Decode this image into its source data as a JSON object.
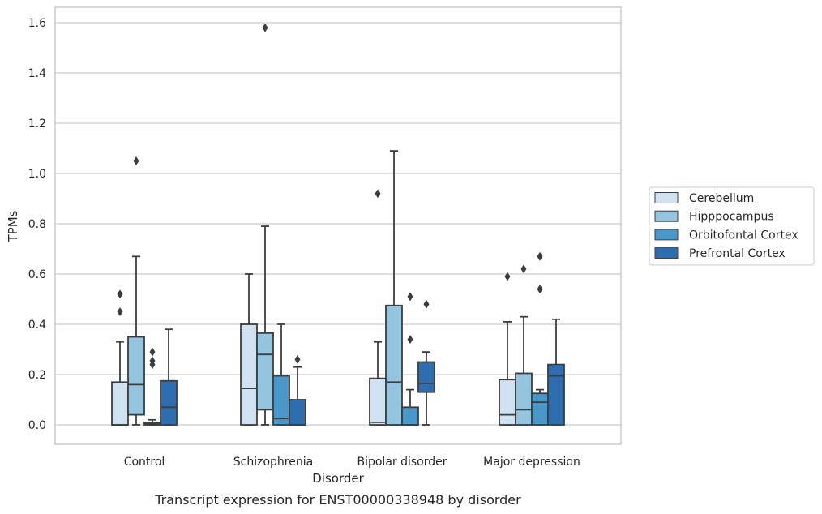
{
  "chart_data": {
    "type": "boxplot",
    "caption": "Transcript expression for ENST00000338948 by disorder",
    "xlabel": "Disorder",
    "ylabel": "TPMs",
    "ylim": [
      -0.08,
      1.66
    ],
    "yticks": [
      "0.0",
      "0.2",
      "0.4",
      "0.6",
      "0.8",
      "1.0",
      "1.2",
      "1.4",
      "1.6"
    ],
    "grid": "horizontal",
    "legend_position": "right",
    "categories": [
      "Control",
      "Schizophrenia",
      "Bipolar disorder",
      "Major depression"
    ],
    "series": [
      {
        "name": "Cerebellum",
        "color": "#d0e1f2",
        "boxes": [
          {
            "whisker_low": 0.0,
            "q1": 0.0,
            "median": 0.0,
            "q3": 0.17,
            "whisker_high": 0.33,
            "outliers": [
              0.45,
              0.52
            ]
          },
          {
            "whisker_low": 0.0,
            "q1": 0.0,
            "median": 0.145,
            "q3": 0.4,
            "whisker_high": 0.6,
            "outliers": []
          },
          {
            "whisker_low": 0.0,
            "q1": 0.0,
            "median": 0.01,
            "q3": 0.185,
            "whisker_high": 0.33,
            "outliers": [
              0.92
            ]
          },
          {
            "whisker_low": 0.0,
            "q1": 0.0,
            "median": 0.04,
            "q3": 0.18,
            "whisker_high": 0.41,
            "outliers": [
              0.59
            ]
          }
        ]
      },
      {
        "name": "Hipppocampus",
        "color": "#94c4df",
        "boxes": [
          {
            "whisker_low": 0.0,
            "q1": 0.04,
            "median": 0.16,
            "q3": 0.35,
            "whisker_high": 0.67,
            "outliers": [
              1.05
            ]
          },
          {
            "whisker_low": 0.0,
            "q1": 0.06,
            "median": 0.28,
            "q3": 0.365,
            "whisker_high": 0.79,
            "outliers": [
              1.58
            ]
          },
          {
            "whisker_low": 0.0,
            "q1": 0.0,
            "median": 0.17,
            "q3": 0.475,
            "whisker_high": 1.09,
            "outliers": []
          },
          {
            "whisker_low": 0.0,
            "q1": 0.0,
            "median": 0.06,
            "q3": 0.205,
            "whisker_high": 0.43,
            "outliers": [
              0.62
            ]
          }
        ]
      },
      {
        "name": "Orbitofontal Cortex",
        "color": "#4a98c9",
        "boxes": [
          {
            "whisker_low": 0.0,
            "q1": 0.0,
            "median": 0.005,
            "q3": 0.01,
            "whisker_high": 0.02,
            "outliers": [
              0.24,
              0.255,
              0.29
            ]
          },
          {
            "whisker_low": 0.0,
            "q1": 0.0,
            "median": 0.025,
            "q3": 0.195,
            "whisker_high": 0.4,
            "outliers": []
          },
          {
            "whisker_low": 0.0,
            "q1": 0.0,
            "median": 0.0,
            "q3": 0.07,
            "whisker_high": 0.14,
            "outliers": [
              0.34,
              0.51
            ]
          },
          {
            "whisker_low": 0.0,
            "q1": 0.0,
            "median": 0.09,
            "q3": 0.125,
            "whisker_high": 0.14,
            "outliers": [
              0.54,
              0.67
            ]
          }
        ]
      },
      {
        "name": "Prefrontal Cortex",
        "color": "#2e6eaf",
        "boxes": [
          {
            "whisker_low": 0.0,
            "q1": 0.0,
            "median": 0.07,
            "q3": 0.175,
            "whisker_high": 0.38,
            "outliers": []
          },
          {
            "whisker_low": 0.0,
            "q1": 0.0,
            "median": 0.0,
            "q3": 0.1,
            "whisker_high": 0.23,
            "outliers": [
              0.26
            ]
          },
          {
            "whisker_low": 0.0,
            "q1": 0.13,
            "median": 0.165,
            "q3": 0.25,
            "whisker_high": 0.29,
            "outliers": [
              0.48
            ]
          },
          {
            "whisker_low": 0.0,
            "q1": 0.0,
            "median": 0.195,
            "q3": 0.24,
            "whisker_high": 0.42,
            "outliers": []
          }
        ]
      }
    ]
  }
}
